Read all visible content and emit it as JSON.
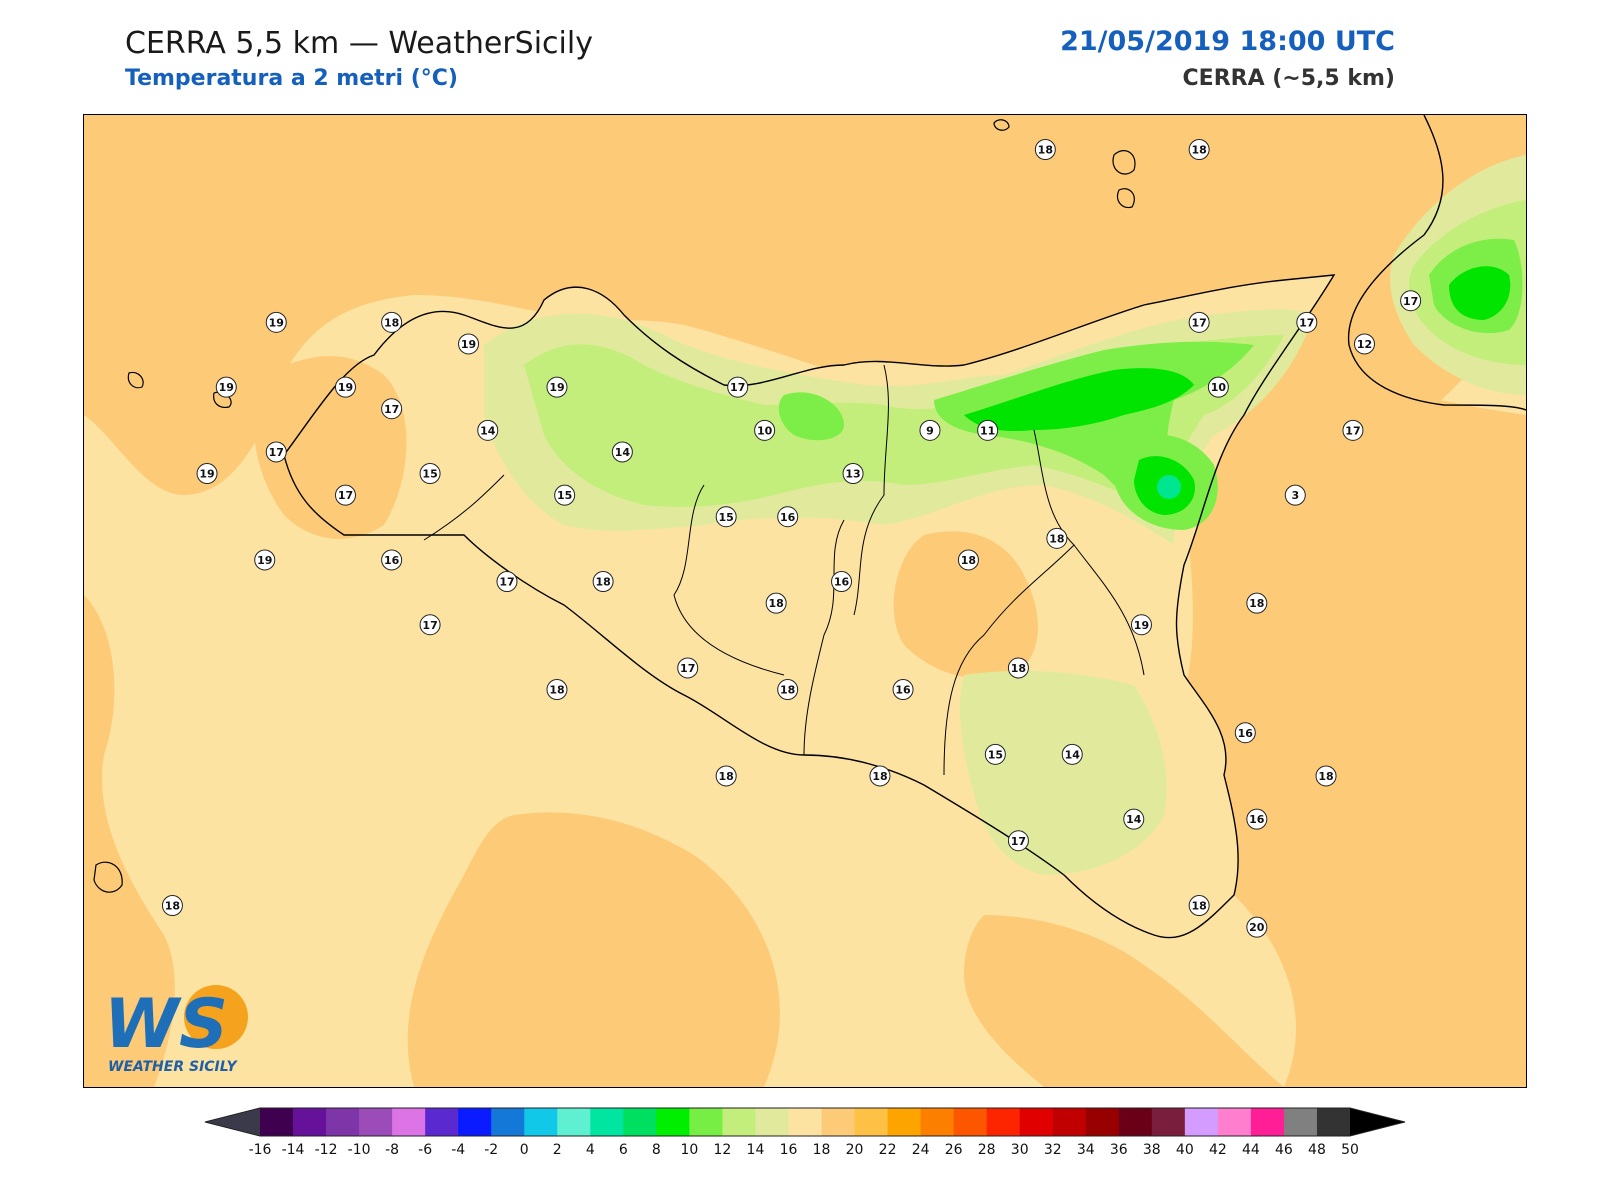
{
  "header": {
    "title": "CERRA 5,5 km — WeatherSicily",
    "subtitle": "Temperatura a 2 metri (°C)",
    "datetime": "21/05/2019 18:00 UTC",
    "model": "CERRA (~5,5 km)"
  },
  "logo": {
    "letters": "WS",
    "caption": "WEATHER SICILY"
  },
  "colors": {
    "sea_base": "#fde3a2",
    "warm_band": "#fdcb78",
    "green_light": "#e1ea9c",
    "green_mid": "#c3ee7c",
    "green_bright": "#7dee47",
    "green_deep": "#00e400",
    "cold_core": "#00e58f"
  },
  "colorbar": {
    "ticks": [
      -16,
      -14,
      -12,
      -10,
      -8,
      -6,
      -4,
      -2,
      0,
      2,
      4,
      6,
      8,
      10,
      12,
      14,
      16,
      18,
      20,
      22,
      24,
      26,
      28,
      30,
      32,
      34,
      36,
      38,
      40,
      42,
      44,
      46,
      48,
      50
    ],
    "colors": [
      "#400050",
      "#66119a",
      "#7e35a8",
      "#9b4cb8",
      "#dc74e6",
      "#5a2ad0",
      "#0a1cff",
      "#1478d8",
      "#12c8e8",
      "#5ef0d0",
      "#00e6a0",
      "#00e060",
      "#00ee00",
      "#77ee44",
      "#c3ee7c",
      "#e1ea9c",
      "#fde3a2",
      "#fdcb78",
      "#fdc245",
      "#fda400",
      "#fd7f00",
      "#fd5600",
      "#fd2400",
      "#e10000",
      "#c00000",
      "#980000",
      "#6a0018",
      "#7a1e3e",
      "#d49cff",
      "#ff7fce",
      "#ff1e96",
      "#808080",
      "#333333"
    ],
    "under_color": "#3a3a4a",
    "over_color": "#000000"
  },
  "stations": [
    {
      "v": "18",
      "lon": 14.55,
      "lat": 38.62
    },
    {
      "v": "18",
      "lon": 14.95,
      "lat": 38.62
    },
    {
      "v": "19",
      "lon": 12.55,
      "lat": 38.22
    },
    {
      "v": "18",
      "lon": 12.85,
      "lat": 38.22
    },
    {
      "v": "19",
      "lon": 13.05,
      "lat": 38.17
    },
    {
      "v": "19",
      "lon": 12.42,
      "lat": 38.07
    },
    {
      "v": "19",
      "lon": 12.73,
      "lat": 38.07
    },
    {
      "v": "17",
      "lon": 12.85,
      "lat": 38.02
    },
    {
      "v": "19",
      "lon": 13.28,
      "lat": 38.07
    },
    {
      "v": "17",
      "lon": 13.75,
      "lat": 38.07
    },
    {
      "v": "17",
      "lon": 14.95,
      "lat": 38.22
    },
    {
      "v": "17",
      "lon": 15.23,
      "lat": 38.22
    },
    {
      "v": "17",
      "lon": 15.5,
      "lat": 38.27
    },
    {
      "v": "12",
      "lon": 15.38,
      "lat": 38.17
    },
    {
      "v": "10",
      "lon": 15.0,
      "lat": 38.07
    },
    {
      "v": "14",
      "lon": 13.1,
      "lat": 37.97
    },
    {
      "v": "10",
      "lon": 13.82,
      "lat": 37.97
    },
    {
      "v": "9",
      "lon": 14.25,
      "lat": 37.97
    },
    {
      "v": "11",
      "lon": 14.4,
      "lat": 37.97
    },
    {
      "v": "17",
      "lon": 15.35,
      "lat": 37.97
    },
    {
      "v": "17",
      "lon": 12.55,
      "lat": 37.92
    },
    {
      "v": "14",
      "lon": 13.45,
      "lat": 37.92
    },
    {
      "v": "19",
      "lon": 12.37,
      "lat": 37.87
    },
    {
      "v": "15",
      "lon": 12.95,
      "lat": 37.87
    },
    {
      "v": "13",
      "lon": 14.05,
      "lat": 37.87
    },
    {
      "v": "17",
      "lon": 12.73,
      "lat": 37.82
    },
    {
      "v": "15",
      "lon": 13.3,
      "lat": 37.82
    },
    {
      "v": "3",
      "lon": 15.2,
      "lat": 37.82
    },
    {
      "v": "15",
      "lon": 13.72,
      "lat": 37.77
    },
    {
      "v": "16",
      "lon": 13.88,
      "lat": 37.77
    },
    {
      "v": "19",
      "lon": 12.52,
      "lat": 37.67
    },
    {
      "v": "16",
      "lon": 12.85,
      "lat": 37.67
    },
    {
      "v": "18",
      "lon": 14.58,
      "lat": 37.72
    },
    {
      "v": "18",
      "lon": 14.35,
      "lat": 37.67
    },
    {
      "v": "17",
      "lon": 13.15,
      "lat": 37.62
    },
    {
      "v": "18",
      "lon": 13.4,
      "lat": 37.62
    },
    {
      "v": "16",
      "lon": 14.02,
      "lat": 37.62
    },
    {
      "v": "18",
      "lon": 15.1,
      "lat": 37.57
    },
    {
      "v": "18",
      "lon": 13.85,
      "lat": 37.57
    },
    {
      "v": "17",
      "lon": 12.95,
      "lat": 37.52
    },
    {
      "v": "19",
      "lon": 14.8,
      "lat": 37.52
    },
    {
      "v": "18",
      "lon": 14.48,
      "lat": 37.42
    },
    {
      "v": "17",
      "lon": 13.62,
      "lat": 37.42
    },
    {
      "v": "18",
      "lon": 13.28,
      "lat": 37.37
    },
    {
      "v": "18",
      "lon": 13.88,
      "lat": 37.37
    },
    {
      "v": "16",
      "lon": 14.18,
      "lat": 37.37
    },
    {
      "v": "16",
      "lon": 15.07,
      "lat": 37.27
    },
    {
      "v": "15",
      "lon": 14.42,
      "lat": 37.22
    },
    {
      "v": "14",
      "lon": 14.62,
      "lat": 37.22
    },
    {
      "v": "18",
      "lon": 13.72,
      "lat": 37.17
    },
    {
      "v": "18",
      "lon": 14.12,
      "lat": 37.17
    },
    {
      "v": "18",
      "lon": 15.28,
      "lat": 37.17
    },
    {
      "v": "14",
      "lon": 14.78,
      "lat": 37.07
    },
    {
      "v": "16",
      "lon": 15.1,
      "lat": 37.07
    },
    {
      "v": "17",
      "lon": 14.48,
      "lat": 37.02
    },
    {
      "v": "18",
      "lon": 14.95,
      "lat": 36.87
    },
    {
      "v": "20",
      "lon": 15.1,
      "lat": 36.82
    },
    {
      "v": "18",
      "lon": 12.28,
      "lat": 36.87
    }
  ]
}
